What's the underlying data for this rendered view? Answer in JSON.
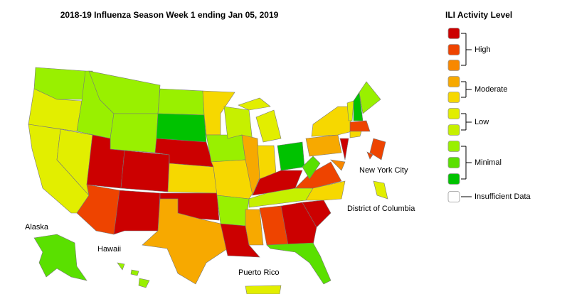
{
  "title": "2018-19 Influenza Season Week 1 ending Jan 05, 2019",
  "legend": {
    "title": "ILI Activity Level",
    "levels": [
      {
        "color": "#cc0000"
      },
      {
        "color": "#ee4400"
      },
      {
        "color": "#f88800"
      },
      {
        "color": "#f7a900"
      },
      {
        "color": "#f6d800"
      },
      {
        "color": "#e2ee00"
      },
      {
        "color": "#c6f000"
      },
      {
        "color": "#99f000"
      },
      {
        "color": "#5ae000"
      },
      {
        "color": "#00c200"
      }
    ],
    "groups": [
      {
        "label": "High"
      },
      {
        "label": "Moderate"
      },
      {
        "label": "Low"
      },
      {
        "label": "Minimal"
      }
    ],
    "insufficient": {
      "label": "Insufficient Data",
      "color": "#ffffff"
    }
  },
  "labels": {
    "new_york_city": "New York City",
    "district_of_columbia": "District of Columbia",
    "alaska": "Alaska",
    "hawaii": "Hawaii",
    "puerto_rico": "Puerto Rico"
  }
}
